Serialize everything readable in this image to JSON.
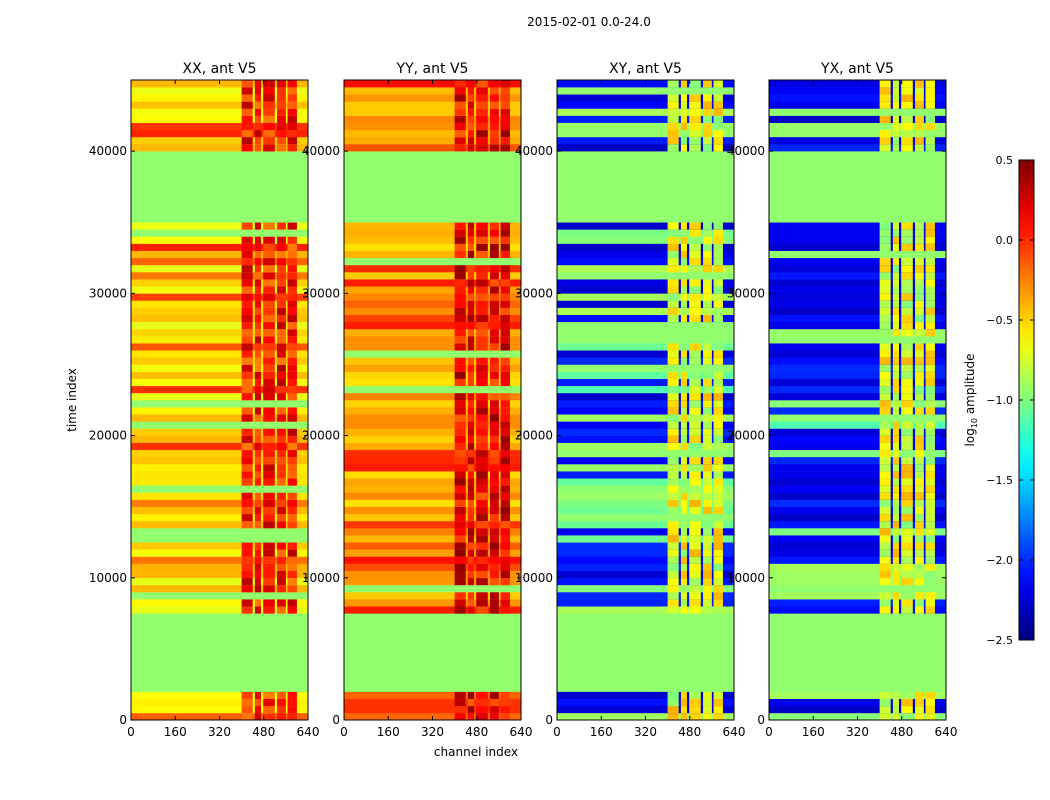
{
  "chart_data": {
    "type": "heatmap",
    "title": "2015-02-01 0.0-24.0",
    "xlabel": "channel index",
    "ylabel": "time index",
    "xlim": [
      0,
      640
    ],
    "ylim": [
      0,
      45000
    ],
    "xticks": [
      "0",
      "160",
      "320",
      "480",
      "640"
    ],
    "xtick_values": [
      0,
      160,
      320,
      480,
      640
    ],
    "yticks": [
      "0",
      "10000",
      "20000",
      "30000",
      "40000"
    ],
    "ytick_values": [
      0,
      10000,
      20000,
      30000,
      40000
    ],
    "flagged_value": -0.95,
    "flagged_time_ranges": [
      [
        1800,
        7200
      ],
      [
        34600,
        37200
      ],
      [
        37500,
        40000
      ]
    ],
    "rfi_channel_columns": [
      [
        400,
        440
      ],
      [
        448,
        470
      ],
      [
        478,
        520
      ],
      [
        528,
        560
      ],
      [
        566,
        600
      ]
    ],
    "panels": [
      {
        "title": "XX, ant V5",
        "base_value": -0.55,
        "stripe_value": -0.1,
        "rfi_value": 0.05
      },
      {
        "title": "YY, ant V5",
        "base_value": -0.4,
        "stripe_value": -0.05,
        "rfi_value": 0.15
      },
      {
        "title": "XY, ant V5",
        "base_value": -2.15,
        "stripe_value": -1.0,
        "rfi_value": -0.7
      },
      {
        "title": "YX, ant V5",
        "base_value": -2.15,
        "stripe_value": -1.0,
        "rfi_value": -0.7
      }
    ],
    "colorbar": {
      "label": "log10 amplitude",
      "label_main": "log",
      "label_sub": "10",
      "label_rest": " amplitude",
      "range": [
        -2.5,
        0.5
      ],
      "ticks": [
        "0.5",
        "0.0",
        "−0.5",
        "−1.0",
        "−1.5",
        "−2.0",
        "−2.5"
      ],
      "tick_values": [
        0.5,
        0.0,
        -0.5,
        -1.0,
        -1.5,
        -2.0,
        -2.5
      ],
      "colormap": "jet"
    }
  }
}
